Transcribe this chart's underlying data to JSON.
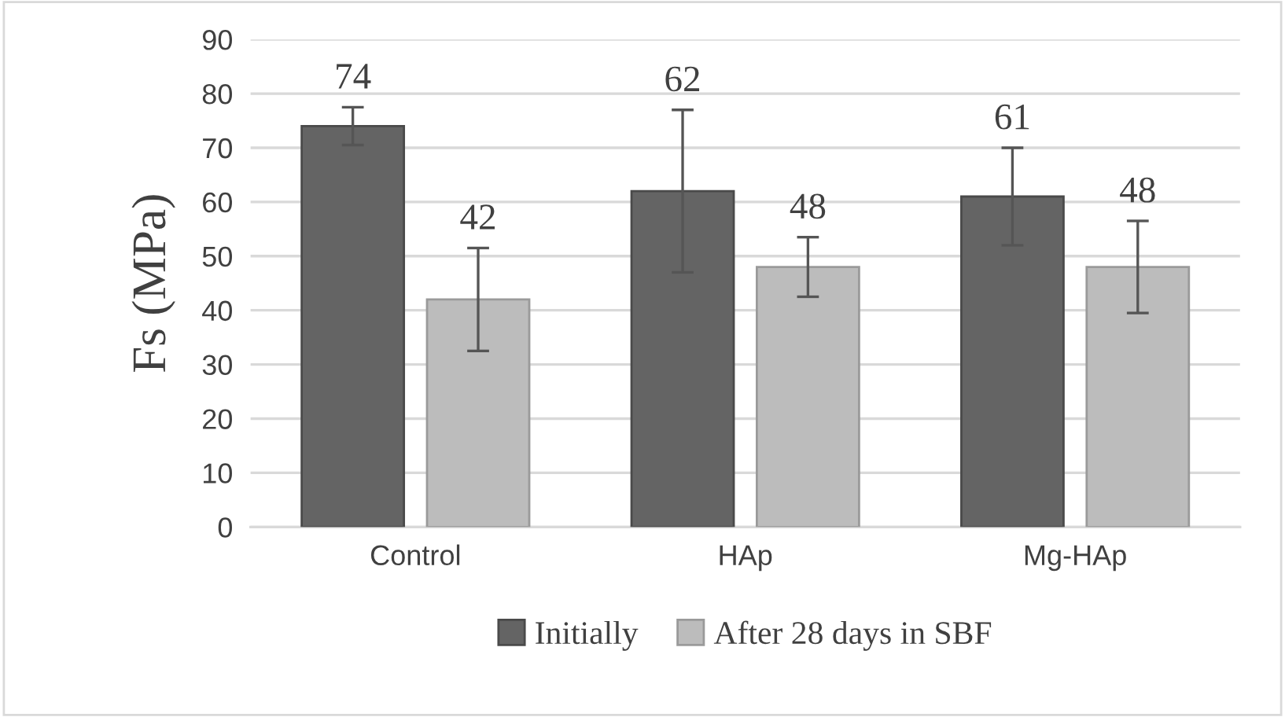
{
  "chart_data": {
    "type": "bar",
    "ylabel": "Fs (MPa)",
    "categories": [
      "Control",
      "HAp",
      "Mg-HAp"
    ],
    "series": [
      {
        "name": "Initially",
        "color": "#646464",
        "values": [
          74,
          62,
          61
        ],
        "errors": [
          3.5,
          15,
          9
        ]
      },
      {
        "name": "After 28 days in SBF",
        "color": "#bcbcbc",
        "values": [
          42,
          48,
          48
        ],
        "errors": [
          9.5,
          5.5,
          8.5
        ]
      }
    ],
    "ylim": [
      0,
      90
    ],
    "yticks": [
      0,
      10,
      20,
      30,
      40,
      50,
      60,
      70,
      80,
      90
    ],
    "grid": "y",
    "legend": "bottom",
    "data_labels": true
  }
}
